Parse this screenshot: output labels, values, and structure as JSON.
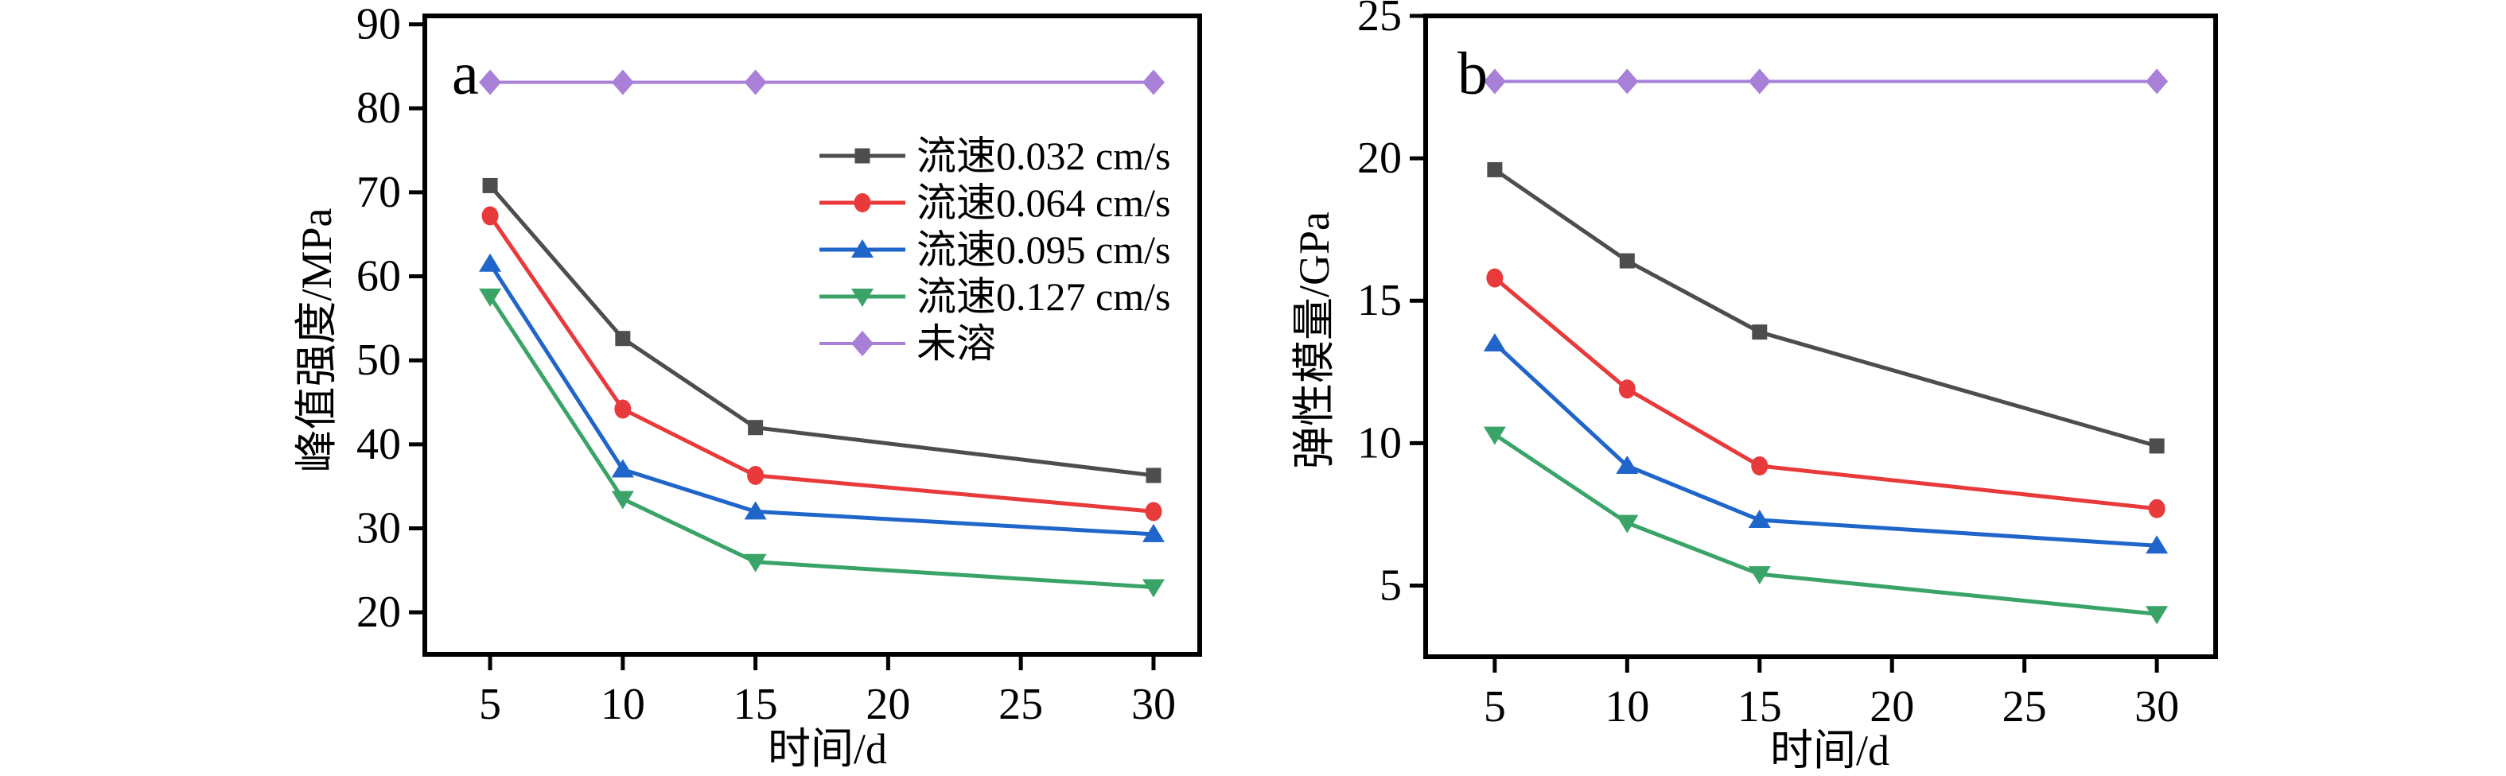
{
  "figure": {
    "background": "#ffffff",
    "frame_color": "#000000",
    "panels": [
      "a",
      "b"
    ]
  },
  "chart_data": [
    {
      "type": "line",
      "panel_label": "a",
      "title": "",
      "xlabel": "时间/d",
      "ylabel": "峰值强度/MPa",
      "x": [
        5,
        10,
        15,
        30
      ],
      "xticks": [
        5,
        10,
        15,
        20,
        25,
        30
      ],
      "yticks": [
        20,
        30,
        40,
        50,
        60,
        70,
        80,
        90
      ],
      "xlim": [
        2.54,
        31.74
      ],
      "ylim": [
        15,
        91
      ],
      "grid": false,
      "legend_position": "upper-right-inside",
      "show_legend": true,
      "series": [
        {
          "name": "流速0.032 cm/s",
          "marker": "square-icon",
          "color": "#4d4d4d",
          "values": [
            70.8,
            52.6,
            42.0,
            36.3
          ]
        },
        {
          "name": "流速0.064 cm/s",
          "marker": "circle-icon",
          "color": "#e8393b",
          "values": [
            67.2,
            44.2,
            36.3,
            32.0
          ]
        },
        {
          "name": "流速0.095 cm/s",
          "marker": "triangle-up-icon",
          "color": "#2065c9",
          "values": [
            61.5,
            37.0,
            32.0,
            29.3
          ]
        },
        {
          "name": "流速0.127 cm/s",
          "marker": "triangle-down-icon",
          "color": "#3aa468",
          "values": [
            57.6,
            33.5,
            26.0,
            23.0
          ]
        },
        {
          "name": "未溶",
          "marker": "diamond-icon",
          "color": "#a980d8",
          "values": [
            83.1,
            83.1,
            83.1,
            83.1
          ]
        }
      ]
    },
    {
      "type": "line",
      "panel_label": "b",
      "title": "",
      "xlabel": "时间/d",
      "ylabel": "弹性模量/GPa",
      "x": [
        5,
        10,
        15,
        30
      ],
      "xticks": [
        5,
        10,
        15,
        20,
        25,
        30
      ],
      "yticks": [
        5,
        10,
        15,
        20,
        25
      ],
      "xlim": [
        2.39,
        32.22
      ],
      "ylim": [
        2.5,
        25
      ],
      "grid": false,
      "legend_position": "none",
      "show_legend": false,
      "series": [
        {
          "name": "流速0.032 cm/s",
          "marker": "square-icon",
          "color": "#4d4d4d",
          "values": [
            19.6,
            16.4,
            13.9,
            9.9
          ]
        },
        {
          "name": "流速0.064 cm/s",
          "marker": "circle-icon",
          "color": "#e8393b",
          "values": [
            15.8,
            11.9,
            9.2,
            7.7
          ]
        },
        {
          "name": "流速0.095 cm/s",
          "marker": "triangle-up-icon",
          "color": "#2065c9",
          "values": [
            13.5,
            9.2,
            7.3,
            6.4
          ]
        },
        {
          "name": "流速0.127 cm/s",
          "marker": "triangle-down-icon",
          "color": "#3aa468",
          "values": [
            10.3,
            7.2,
            5.4,
            4.0
          ]
        },
        {
          "name": "未溶",
          "marker": "diamond-icon",
          "color": "#a980d8",
          "values": [
            22.7,
            22.7,
            22.7,
            22.7
          ]
        }
      ]
    }
  ]
}
